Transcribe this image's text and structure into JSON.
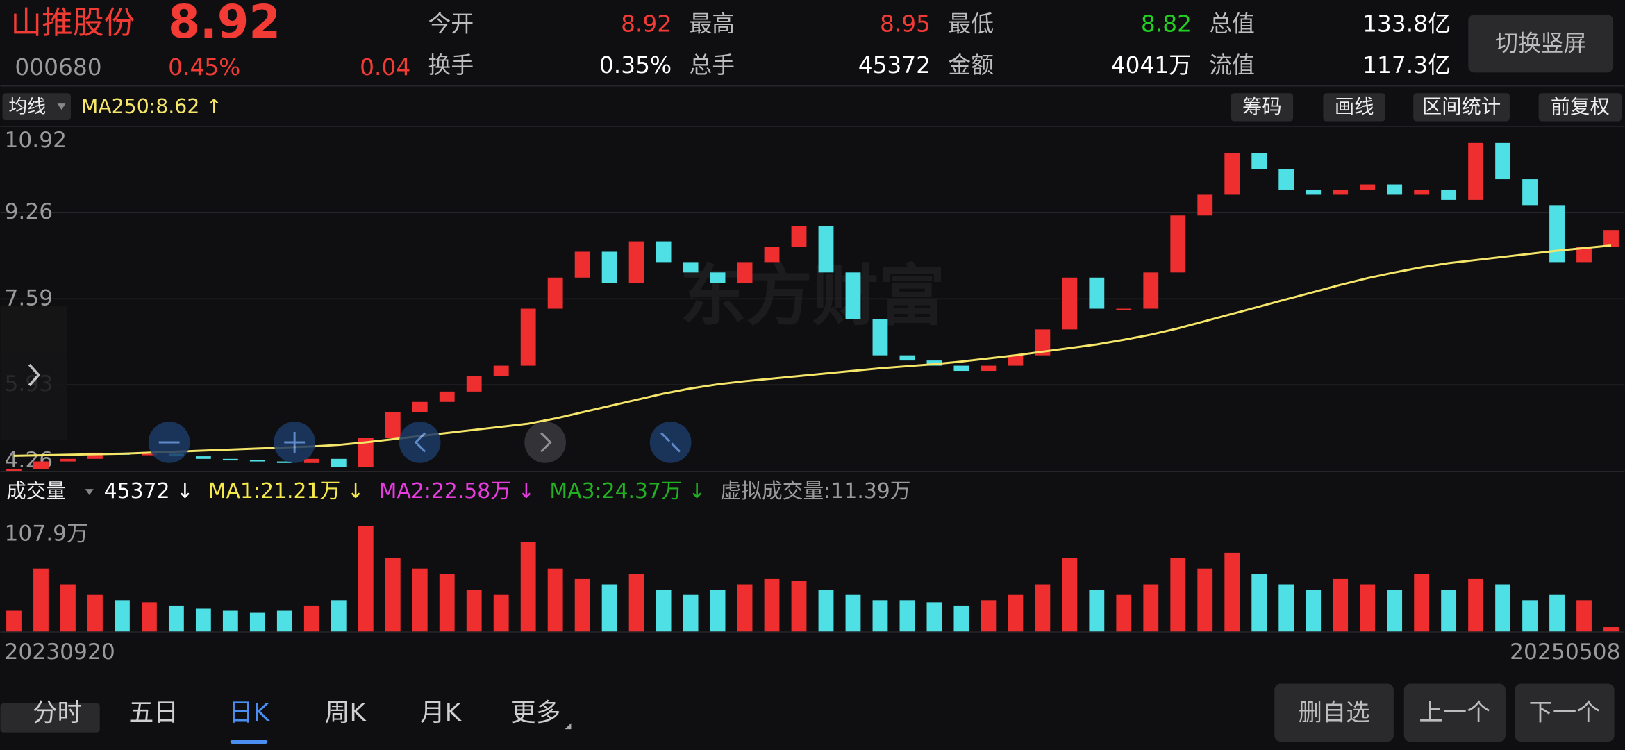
{
  "header": {
    "name": "山推股份",
    "price": "8.92",
    "code": "000680",
    "change_pct": "0.45%",
    "change": "0.04",
    "stats": [
      {
        "label": "今开",
        "value": "8.92",
        "color": "#f23b35"
      },
      {
        "label": "最高",
        "value": "8.95",
        "color": "#f23b35"
      },
      {
        "label": "最低",
        "value": "8.82",
        "color": "#22d022"
      },
      {
        "label": "总值",
        "value": "133.8亿",
        "color": "#ffffff"
      },
      {
        "label": "换手",
        "value": "0.35%",
        "color": "#ffffff"
      },
      {
        "label": "总手",
        "value": "45372",
        "color": "#ffffff"
      },
      {
        "label": "金额",
        "value": "4041万",
        "color": "#ffffff"
      },
      {
        "label": "流值",
        "value": "117.3亿",
        "color": "#ffffff"
      }
    ],
    "orient_button": "切换竖屏"
  },
  "toolbar": {
    "indicator": "均线",
    "ma_label": "MA250:8.62 ↑",
    "buttons": [
      "筹码",
      "画线",
      "区间统计",
      "前复权"
    ]
  },
  "chart_data": [
    {
      "type": "candlestick",
      "watermark": "东方财富",
      "ylim": [
        4.26,
        10.92
      ],
      "yticks": [
        10.92,
        9.26,
        7.59,
        5.93,
        4.26
      ],
      "up_color": "#ef2f2f",
      "down_color": "#4fe0e6",
      "close": [
        4.3,
        4.45,
        4.5,
        4.62,
        4.58,
        4.6,
        4.55,
        4.5,
        4.48,
        4.45,
        4.42,
        4.5,
        4.35,
        4.9,
        5.4,
        5.6,
        5.8,
        6.1,
        6.3,
        7.4,
        8.0,
        8.5,
        7.9,
        8.7,
        8.3,
        8.1,
        7.9,
        8.3,
        8.6,
        9.0,
        8.1,
        7.2,
        6.5,
        6.4,
        6.3,
        6.2,
        6.3,
        6.5,
        7.0,
        8.0,
        7.4,
        7.4,
        8.1,
        9.2,
        9.6,
        10.4,
        10.1,
        9.7,
        9.6,
        9.7,
        9.8,
        9.6,
        9.7,
        9.5,
        10.6,
        9.9,
        9.4,
        8.3,
        8.6,
        8.92
      ],
      "ma250": {
        "name": "MA250",
        "color": "#f5e66a",
        "values": [
          4.56,
          4.57,
          4.58,
          4.59,
          4.6,
          4.62,
          4.64,
          4.66,
          4.68,
          4.7,
          4.72,
          4.74,
          4.77,
          4.82,
          4.88,
          4.94,
          5.0,
          5.06,
          5.12,
          5.18,
          5.28,
          5.4,
          5.52,
          5.64,
          5.76,
          5.86,
          5.94,
          6.0,
          6.05,
          6.1,
          6.15,
          6.2,
          6.25,
          6.29,
          6.33,
          6.38,
          6.44,
          6.5,
          6.57,
          6.64,
          6.71,
          6.8,
          6.9,
          7.02,
          7.16,
          7.3,
          7.44,
          7.58,
          7.72,
          7.86,
          7.99,
          8.1,
          8.2,
          8.28,
          8.34,
          8.4,
          8.46,
          8.52,
          8.57,
          8.62
        ]
      }
    },
    {
      "type": "bar",
      "indicator": "成交量",
      "legend": [
        {
          "text": "45372 ↓",
          "color": "#ffffff"
        },
        {
          "text": "MA1:21.21万 ↓",
          "color": "#f5e84a"
        },
        {
          "text": "MA2:22.58万 ↓",
          "color": "#e83ce0"
        },
        {
          "text": "MA3:24.37万 ↓",
          "color": "#22b022"
        },
        {
          "text": "虚拟成交量:11.39万",
          "color": "#9a9a9a"
        }
      ],
      "ylim": [
        0,
        107.9
      ],
      "yticks": [
        {
          "value": 107.9,
          "label": "107.9万"
        }
      ],
      "values": [
        20,
        60,
        45,
        35,
        30,
        28,
        25,
        22,
        20,
        18,
        20,
        25,
        30,
        100,
        70,
        60,
        55,
        40,
        35,
        85,
        60,
        50,
        45,
        55,
        40,
        35,
        40,
        45,
        50,
        48,
        40,
        35,
        30,
        30,
        28,
        25,
        30,
        35,
        45,
        70,
        40,
        35,
        45,
        70,
        60,
        75,
        55,
        45,
        40,
        50,
        45,
        40,
        55,
        40,
        50,
        45,
        30,
        35,
        30,
        4.5372
      ],
      "x_labels": [
        "20230920",
        "20250508"
      ]
    }
  ],
  "tabs": [
    "分时",
    "五日",
    "日K",
    "周K",
    "月K",
    "更多"
  ],
  "active_tab": "日K",
  "actions": [
    "删自选",
    "上一个",
    "下一个"
  ]
}
